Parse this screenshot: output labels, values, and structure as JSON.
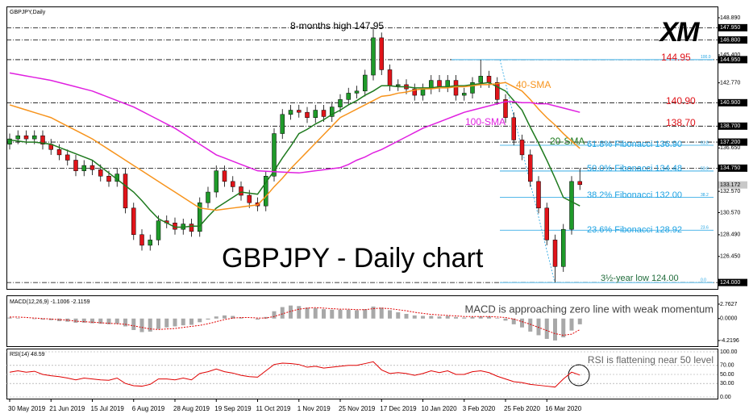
{
  "logo": "XM",
  "chart_data": [
    {
      "type": "candlestick",
      "title": "GBPJPY,Daily",
      "categories": [
        "30 May 2019",
        null,
        null,
        null,
        null,
        "21 Jun 2019",
        null,
        null,
        null,
        null,
        "15 Jul 2019",
        null,
        null,
        null,
        null,
        "6 Aug 2019",
        null,
        null,
        null,
        null,
        "28 Aug 2019",
        null,
        null,
        null,
        null,
        "19 Sep 2019",
        null,
        null,
        null,
        null,
        "11 Oct 2019",
        null,
        null,
        null,
        null,
        "1 Nov 2019",
        null,
        null,
        null,
        null,
        "25 Nov 2019",
        null,
        null,
        null,
        null,
        "17 Dec 2019",
        null,
        null,
        null,
        null,
        "10 Jan 2020",
        null,
        null,
        null,
        null,
        "3 Feb 2020",
        null,
        null,
        null,
        null,
        "25 Feb 2020",
        null,
        null,
        null,
        null,
        "16 Mar 2020",
        null,
        null,
        null,
        null
      ],
      "open": [
        137.0,
        137.5,
        137.8,
        137.5,
        137.8,
        137.0,
        136.5,
        136.0,
        135.5,
        134.5,
        135.0,
        134.6,
        134.0,
        133.5,
        134.2,
        131.0,
        128.5,
        127.5,
        128.0,
        129.8,
        129.6,
        129.0,
        129.5,
        128.8,
        131.5,
        132.5,
        134.5,
        133.5,
        133.0,
        132.2,
        131.5,
        131.2,
        134.0,
        138.0,
        139.8,
        140.2,
        140.0,
        139.5,
        140.2,
        139.6,
        140.5,
        141.2,
        141.8,
        142.0,
        143.5,
        147.0,
        144.0,
        142.5,
        142.6,
        142.2,
        141.6,
        142.2,
        143.0,
        142.4,
        143.0,
        141.6,
        141.8,
        142.8,
        143.4,
        142.8,
        141.2,
        139.5,
        137.4,
        136.0,
        133.5,
        131.0,
        128.0,
        125.5,
        129.0,
        133.5
      ],
      "high": [
        138.0,
        138.3,
        138.3,
        138.3,
        138.3,
        137.5,
        137.0,
        136.5,
        136.0,
        135.5,
        135.5,
        135.1,
        134.5,
        134.7,
        134.7,
        131.5,
        129.0,
        128.5,
        130.3,
        130.3,
        130.1,
        130.0,
        130.0,
        132.0,
        133.0,
        135.0,
        135.0,
        134.0,
        133.5,
        132.7,
        132.0,
        134.5,
        138.5,
        140.3,
        140.7,
        140.7,
        140.5,
        140.7,
        140.7,
        141.0,
        141.7,
        142.3,
        142.5,
        144.0,
        147.95,
        147.5,
        144.5,
        143.1,
        143.1,
        142.7,
        142.7,
        143.5,
        143.5,
        143.5,
        143.5,
        142.3,
        143.3,
        144.95,
        143.9,
        143.3,
        141.7,
        140.0,
        137.9,
        136.5,
        134.0,
        131.5,
        128.5,
        129.5,
        134.0,
        134.75
      ],
      "low": [
        136.5,
        137.0,
        137.0,
        137.0,
        136.5,
        136.0,
        135.5,
        135.0,
        134.0,
        134.0,
        134.1,
        133.5,
        133.0,
        133.0,
        130.5,
        128.0,
        127.0,
        127.0,
        127.5,
        129.1,
        128.5,
        128.5,
        128.3,
        128.3,
        131.0,
        132.0,
        133.0,
        132.5,
        131.7,
        131.0,
        130.7,
        130.7,
        133.5,
        137.5,
        139.3,
        139.5,
        139.0,
        139.0,
        139.1,
        139.1,
        140.0,
        140.7,
        141.3,
        141.5,
        143.0,
        143.5,
        142.0,
        142.0,
        141.7,
        141.1,
        141.1,
        141.7,
        141.9,
        141.9,
        141.1,
        141.1,
        141.3,
        142.3,
        142.3,
        140.7,
        139.0,
        136.9,
        135.5,
        133.0,
        130.5,
        127.5,
        124.0,
        125.0,
        128.5,
        132.7
      ],
      "close": [
        137.5,
        137.8,
        137.5,
        137.8,
        137.0,
        136.5,
        136.0,
        135.5,
        134.5,
        135.0,
        134.6,
        134.0,
        133.5,
        134.2,
        131.0,
        128.5,
        127.5,
        128.0,
        129.8,
        129.6,
        129.0,
        129.5,
        128.8,
        131.5,
        132.5,
        134.5,
        133.5,
        133.0,
        132.2,
        131.5,
        131.2,
        134.0,
        138.0,
        139.8,
        140.2,
        140.0,
        139.5,
        140.2,
        139.6,
        140.5,
        141.2,
        141.8,
        142.0,
        143.5,
        147.0,
        144.0,
        142.5,
        142.6,
        142.2,
        141.6,
        142.2,
        143.0,
        142.4,
        143.0,
        141.6,
        141.8,
        142.8,
        143.4,
        142.8,
        141.2,
        139.5,
        137.4,
        136.0,
        133.5,
        131.0,
        128.0,
        125.5,
        129.0,
        133.5,
        133.2
      ],
      "up_color": "#1f9a2a",
      "down_color": "#e0141a",
      "series": [
        {
          "name": "20-SMA",
          "color": "#1f7a1f",
          "values": [
            137.4,
            137.3,
            137.2,
            137.2,
            137.1,
            137.0,
            136.7,
            136.4,
            136.1,
            135.8,
            135.5,
            134.9,
            134.3,
            133.7,
            133.1,
            132.5,
            131.7,
            130.8,
            130.0,
            129.6,
            129.2,
            129.2,
            129.3,
            129.3,
            130.2,
            131.0,
            131.5,
            132.0,
            132.5,
            132.4,
            132.3,
            133.4,
            134.5,
            135.7,
            136.8,
            138.0,
            138.4,
            138.9,
            139.3,
            139.8,
            140.2,
            140.7,
            141.1,
            141.6,
            142.0,
            142.5,
            142.5,
            142.4,
            142.4,
            142.3,
            142.3,
            142.3,
            142.4,
            142.4,
            142.5,
            142.5,
            142.6,
            142.7,
            142.8,
            142.4,
            142.0,
            141.1,
            140.2,
            138.6,
            137.1,
            135.5,
            133.8,
            132.0,
            131.6,
            131.2
          ]
        },
        {
          "name": "40-SMA",
          "color": "#f7941d",
          "values": [
            140.7,
            140.46,
            140.22,
            139.98,
            139.74,
            139.5,
            139.1,
            138.7,
            138.3,
            137.9,
            137.5,
            137.0,
            136.5,
            136.0,
            135.5,
            135.0,
            134.5,
            134.0,
            133.5,
            133.0,
            132.5,
            132.0,
            131.5,
            131.0,
            130.9,
            130.8,
            130.9,
            131.0,
            131.1,
            131.2,
            131.3,
            132.1,
            133.0,
            133.8,
            134.7,
            135.5,
            136.3,
            137.1,
            137.9,
            138.7,
            139.5,
            139.9,
            140.3,
            140.7,
            141.1,
            141.5,
            141.6,
            141.8,
            141.9,
            142.1,
            142.2,
            142.2,
            142.3,
            142.3,
            142.4,
            142.4,
            142.5,
            142.6,
            142.6,
            142.7,
            142.8,
            142.4,
            142.0,
            141.2,
            140.3,
            139.5,
            138.8,
            138.0,
            137.3,
            136.6
          ]
        },
        {
          "name": "100-SMA",
          "color": "#e020e0",
          "values": [
            143.7,
            143.56,
            143.42,
            143.28,
            143.14,
            143.0,
            142.8,
            142.6,
            142.4,
            142.2,
            142.0,
            141.7,
            141.4,
            141.1,
            140.8,
            140.5,
            140.1,
            139.7,
            139.3,
            138.9,
            138.5,
            138.0,
            137.5,
            137.0,
            136.5,
            136.0,
            135.7,
            135.4,
            135.1,
            134.8,
            134.5,
            134.46,
            134.42,
            134.38,
            134.34,
            134.3,
            134.4,
            134.5,
            134.6,
            134.7,
            134.8,
            135.1,
            135.5,
            135.8,
            136.2,
            136.5,
            136.9,
            137.3,
            137.7,
            138.1,
            138.5,
            138.8,
            139.1,
            139.4,
            139.7,
            140.0,
            140.2,
            140.4,
            140.6,
            140.8,
            141.0,
            141.0,
            140.9,
            140.9,
            140.8,
            140.8,
            140.6,
            140.4,
            140.2,
            140.0
          ]
        }
      ],
      "ylim": [
        123.4,
        149.95
      ],
      "yticks": [
        {
          "value": 148.89,
          "label": "148.890"
        },
        {
          "value": 145.4,
          "label": "145.400"
        },
        {
          "value": 142.77,
          "label": "142.770"
        },
        {
          "value": 136.65,
          "label": "136.650"
        },
        {
          "value": 132.57,
          "label": "132.570"
        },
        {
          "value": 130.57,
          "label": "130.570"
        },
        {
          "value": 128.49,
          "label": "128.490"
        },
        {
          "value": 126.45,
          "label": "126.450"
        }
      ],
      "levels": [
        {
          "value": 147.95,
          "label": "147.950"
        },
        {
          "value": 146.8,
          "label": "146.800"
        },
        {
          "value": 144.95,
          "label": "144.950"
        },
        {
          "value": 140.9,
          "label": "140.900"
        },
        {
          "value": 138.7,
          "label": "138.700"
        },
        {
          "value": 137.2,
          "label": "137.200"
        },
        {
          "value": 134.75,
          "label": "134.750"
        },
        {
          "value": 124,
          "label": "124.000"
        }
      ],
      "last_price": {
        "value": 133.172,
        "label": "133.172"
      },
      "fibonacci": [
        {
          "level": "100.0",
          "price": 144.95
        },
        {
          "level": "61.8",
          "price": 136.9
        },
        {
          "level": "50.0",
          "price": 134.48
        },
        {
          "level": "38.2",
          "price": 132.0
        },
        {
          "level": "23.6",
          "price": 128.92
        },
        {
          "level": "0.0",
          "price": 124.0
        }
      ],
      "fib_color": "#1ba1e2",
      "annotations": [
        "8-months high 147.95",
        "144.95",
        "140.90",
        "138.70",
        "61.8% Fibonacci 136.90",
        "50.0% Fibonacci 134.48",
        "38.2% Fibonacci 132.00",
        "23.6% Fibonacci 128.92",
        "3½-year low 124.00",
        "GBPJPY - Daily chart"
      ]
    },
    {
      "type": "macd",
      "title": "MACD(12,26,9) -1.1006 -2.1159",
      "annotation": "MACD is approaching zero line with weak momentum",
      "series": [
        {
          "color": "#a8a8a8",
          "values": [
            0.2,
            0.1,
            0.0,
            -0.1,
            -0.2,
            -0.3,
            -0.5,
            -0.6,
            -0.8,
            -0.8,
            -0.9,
            -1.0,
            -1.1,
            -1.0,
            -1.5,
            -2.2,
            -2.6,
            -2.5,
            -2.0,
            -1.7,
            -1.5,
            -1.3,
            -1.2,
            -0.7,
            -0.2,
            0.4,
            0.6,
            0.5,
            0.2,
            0.0,
            -0.2,
            0.3,
            1.4,
            2.2,
            2.5,
            2.4,
            2.1,
            2.0,
            1.8,
            1.7,
            1.7,
            1.7,
            1.6,
            1.8,
            2.3,
            2.1,
            1.6,
            1.2,
            0.9,
            0.6,
            0.5,
            0.5,
            0.4,
            0.5,
            0.3,
            0.2,
            0.3,
            0.4,
            0.4,
            0.1,
            -0.4,
            -1.1,
            -1.7,
            -2.5,
            -3.2,
            -3.9,
            -4.2,
            -3.6,
            -2.3,
            -1.1006
          ]
        },
        {
          "color": "#e00000",
          "values": [
            0.3,
            0.3,
            0.2,
            0.1,
            0.0,
            -0.1,
            -0.2,
            -0.3,
            -0.5,
            -0.6,
            -0.7,
            -0.8,
            -0.9,
            -1.0,
            -1.1,
            -1.4,
            -1.7,
            -2.0,
            -2.1,
            -2.0,
            -1.9,
            -1.7,
            -1.5,
            -1.3,
            -1.0,
            -0.6,
            -0.2,
            0.1,
            0.2,
            0.2,
            0.1,
            0.1,
            0.4,
            0.9,
            1.4,
            1.8,
            2.0,
            2.1,
            2.0,
            1.9,
            1.8,
            1.8,
            1.7,
            1.7,
            1.9,
            2.0,
            1.9,
            1.7,
            1.5,
            1.2,
            1.0,
            0.8,
            0.7,
            0.6,
            0.5,
            0.4,
            0.4,
            0.4,
            0.4,
            0.3,
            0.2,
            -0.1,
            -0.6,
            -1.1,
            -1.7,
            -2.3,
            -2.9,
            -3.2,
            -3.0,
            -2.1159
          ]
        }
      ],
      "ylim": [
        -5.3,
        4.3
      ],
      "yticks": [
        2.7627,
        {
          "value": 0,
          "label": "0.0000"
        },
        -4.2196
      ]
    },
    {
      "type": "line",
      "title": "RSI(14) 48.59",
      "annotation": "RSI is flattening near 50 level",
      "color": "#e00000",
      "values": [
        55,
        58,
        55,
        57,
        50,
        47,
        45,
        42,
        38,
        42,
        40,
        38,
        37,
        42,
        30,
        25,
        24,
        28,
        40,
        40,
        38,
        42,
        38,
        52,
        56,
        62,
        56,
        53,
        48,
        45,
        44,
        58,
        72,
        75,
        74,
        72,
        66,
        68,
        64,
        66,
        68,
        70,
        70,
        74,
        78,
        60,
        52,
        54,
        52,
        48,
        52,
        58,
        54,
        58,
        50,
        50,
        56,
        58,
        54,
        46,
        40,
        34,
        32,
        28,
        26,
        24,
        22,
        40,
        55,
        48.59
      ],
      "ylim": [
        0,
        100
      ],
      "yticks": [
        {
          "value": 100,
          "label": "100.00"
        },
        {
          "value": 70,
          "label": "70.00"
        },
        {
          "value": 50,
          "label": "50.00"
        },
        {
          "value": 30,
          "label": "30.00"
        },
        {
          "value": 0,
          "label": "0.00"
        }
      ]
    }
  ]
}
